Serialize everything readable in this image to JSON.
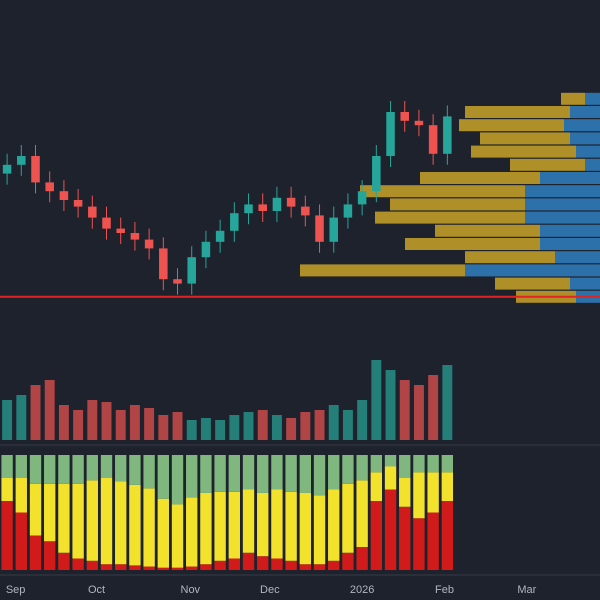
{
  "chart_data": {
    "type": "candlestick",
    "xlim": [
      0,
      42.25
    ],
    "xticks": [
      {
        "value": 1.1,
        "label": "Sep"
      },
      {
        "value": 6.8,
        "label": "Oct"
      },
      {
        "value": 13.4,
        "label": "Nov"
      },
      {
        "value": 19,
        "label": "Dec"
      },
      {
        "value": 25.5,
        "label": "2026"
      },
      {
        "value": 31.3,
        "label": "Feb"
      },
      {
        "value": 37.1,
        "label": "Mar"
      }
    ],
    "ylim": [
      0,
      100
    ],
    "open": [
      62,
      66,
      70,
      58,
      54,
      50,
      47,
      42,
      37,
      35,
      32,
      28,
      14,
      12,
      24,
      31,
      36,
      44,
      48,
      45,
      51,
      47,
      43,
      31,
      42,
      48,
      54,
      70,
      90,
      86,
      84,
      71
    ],
    "high": [
      71,
      75,
      75,
      63,
      59,
      55,
      52,
      47,
      42,
      40,
      37,
      33,
      19,
      29,
      36,
      41,
      49,
      53,
      53,
      56,
      56,
      52,
      48,
      47,
      53,
      59,
      75,
      95,
      95,
      91,
      89,
      93
    ],
    "low": [
      57,
      61,
      53,
      49,
      45,
      42,
      37,
      32,
      30,
      27,
      23,
      9,
      7,
      7,
      19,
      26,
      31,
      39,
      40,
      40,
      42,
      38,
      26,
      26,
      37,
      43,
      49,
      65,
      81,
      79,
      66,
      66
    ],
    "close": [
      66,
      70,
      58,
      54,
      50,
      47,
      42,
      37,
      35,
      32,
      28,
      14,
      12,
      24,
      31,
      36,
      44,
      48,
      45,
      51,
      47,
      43,
      31,
      42,
      48,
      54,
      70,
      90,
      86,
      84,
      71,
      88
    ],
    "up_color": "#26a69a",
    "down_color": "#ef5350",
    "level": 6,
    "level_color": "#e02424",
    "volume": [
      40,
      45,
      55,
      60,
      35,
      30,
      40,
      38,
      30,
      35,
      32,
      25,
      28,
      20,
      22,
      20,
      25,
      28,
      30,
      25,
      22,
      28,
      30,
      35,
      30,
      40,
      80,
      70,
      60,
      55,
      65,
      75
    ],
    "volume_lim": [
      0,
      100
    ],
    "profile": {
      "levels": [
        96,
        90,
        84,
        78,
        72,
        66,
        60,
        54,
        48,
        42,
        36,
        30,
        24,
        18,
        12,
        6
      ],
      "up": [
        8,
        35,
        35,
        30,
        35,
        25,
        40,
        55,
        45,
        50,
        35,
        45,
        30,
        55,
        25,
        20
      ],
      "down": [
        5,
        10,
        12,
        10,
        8,
        5,
        20,
        25,
        25,
        25,
        20,
        20,
        15,
        45,
        10,
        8
      ],
      "xlim": [
        0,
        100
      ],
      "up_color": "#c9a227",
      "down_color": "#2f7fc1"
    },
    "oscillator": [
      {
        "name": "red",
        "color": "#d11a1a",
        "values": [
          60,
          50,
          30,
          25,
          15,
          10,
          8,
          5,
          5,
          4,
          3,
          2,
          2,
          3,
          5,
          8,
          10,
          15,
          12,
          10,
          8,
          5,
          5,
          8,
          15,
          20,
          60,
          70,
          55,
          45,
          50,
          60
        ]
      },
      {
        "name": "yellow",
        "color": "#f2e22c",
        "values": [
          20,
          30,
          45,
          50,
          60,
          65,
          70,
          75,
          72,
          70,
          68,
          60,
          55,
          60,
          62,
          60,
          58,
          55,
          55,
          60,
          60,
          62,
          60,
          62,
          60,
          58,
          25,
          20,
          25,
          40,
          35,
          25
        ]
      },
      {
        "name": "green",
        "color": "#7fb77e",
        "values": [
          20,
          20,
          25,
          25,
          25,
          25,
          22,
          20,
          23,
          26,
          29,
          38,
          43,
          37,
          33,
          32,
          32,
          30,
          33,
          30,
          32,
          33,
          35,
          30,
          25,
          22,
          15,
          10,
          20,
          15,
          15,
          15
        ]
      }
    ]
  }
}
